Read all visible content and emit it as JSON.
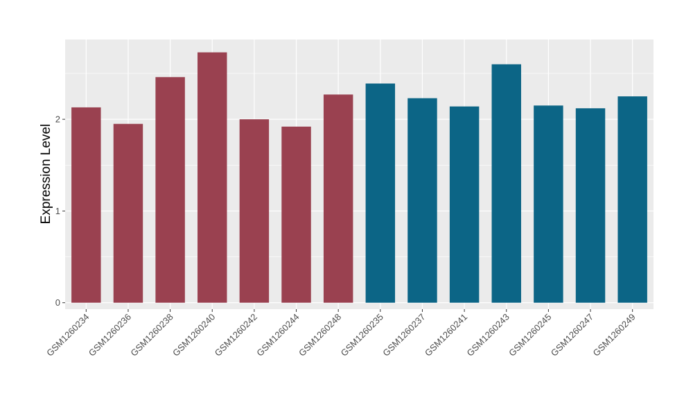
{
  "chart_data": {
    "type": "bar",
    "title": "",
    "xlabel": "",
    "ylabel": "Expression Level",
    "ylim": [
      -0.07,
      2.87
    ],
    "yticks": [
      0,
      1,
      2
    ],
    "grid": true,
    "legend": "none",
    "categories": [
      "GSM1260234",
      "GSM1260236",
      "GSM1260238",
      "GSM1260240",
      "GSM1260242",
      "GSM1260244",
      "GSM1260248",
      "GSM1260235",
      "GSM1260237",
      "GSM1260241",
      "GSM1260243",
      "GSM1260245",
      "GSM1260247",
      "GSM1260249"
    ],
    "values": [
      2.13,
      1.95,
      2.46,
      2.73,
      2.0,
      1.92,
      2.27,
      2.39,
      2.23,
      2.14,
      2.6,
      2.15,
      2.12,
      2.25
    ],
    "bar_colors": [
      "#9a4150",
      "#9a4150",
      "#9a4150",
      "#9a4150",
      "#9a4150",
      "#9a4150",
      "#9a4150",
      "#0c6586",
      "#0c6586",
      "#0c6586",
      "#0c6586",
      "#0c6586",
      "#0c6586",
      "#0c6586"
    ],
    "panel_color": "#ebebeb",
    "grid_color": "#ffffff"
  }
}
